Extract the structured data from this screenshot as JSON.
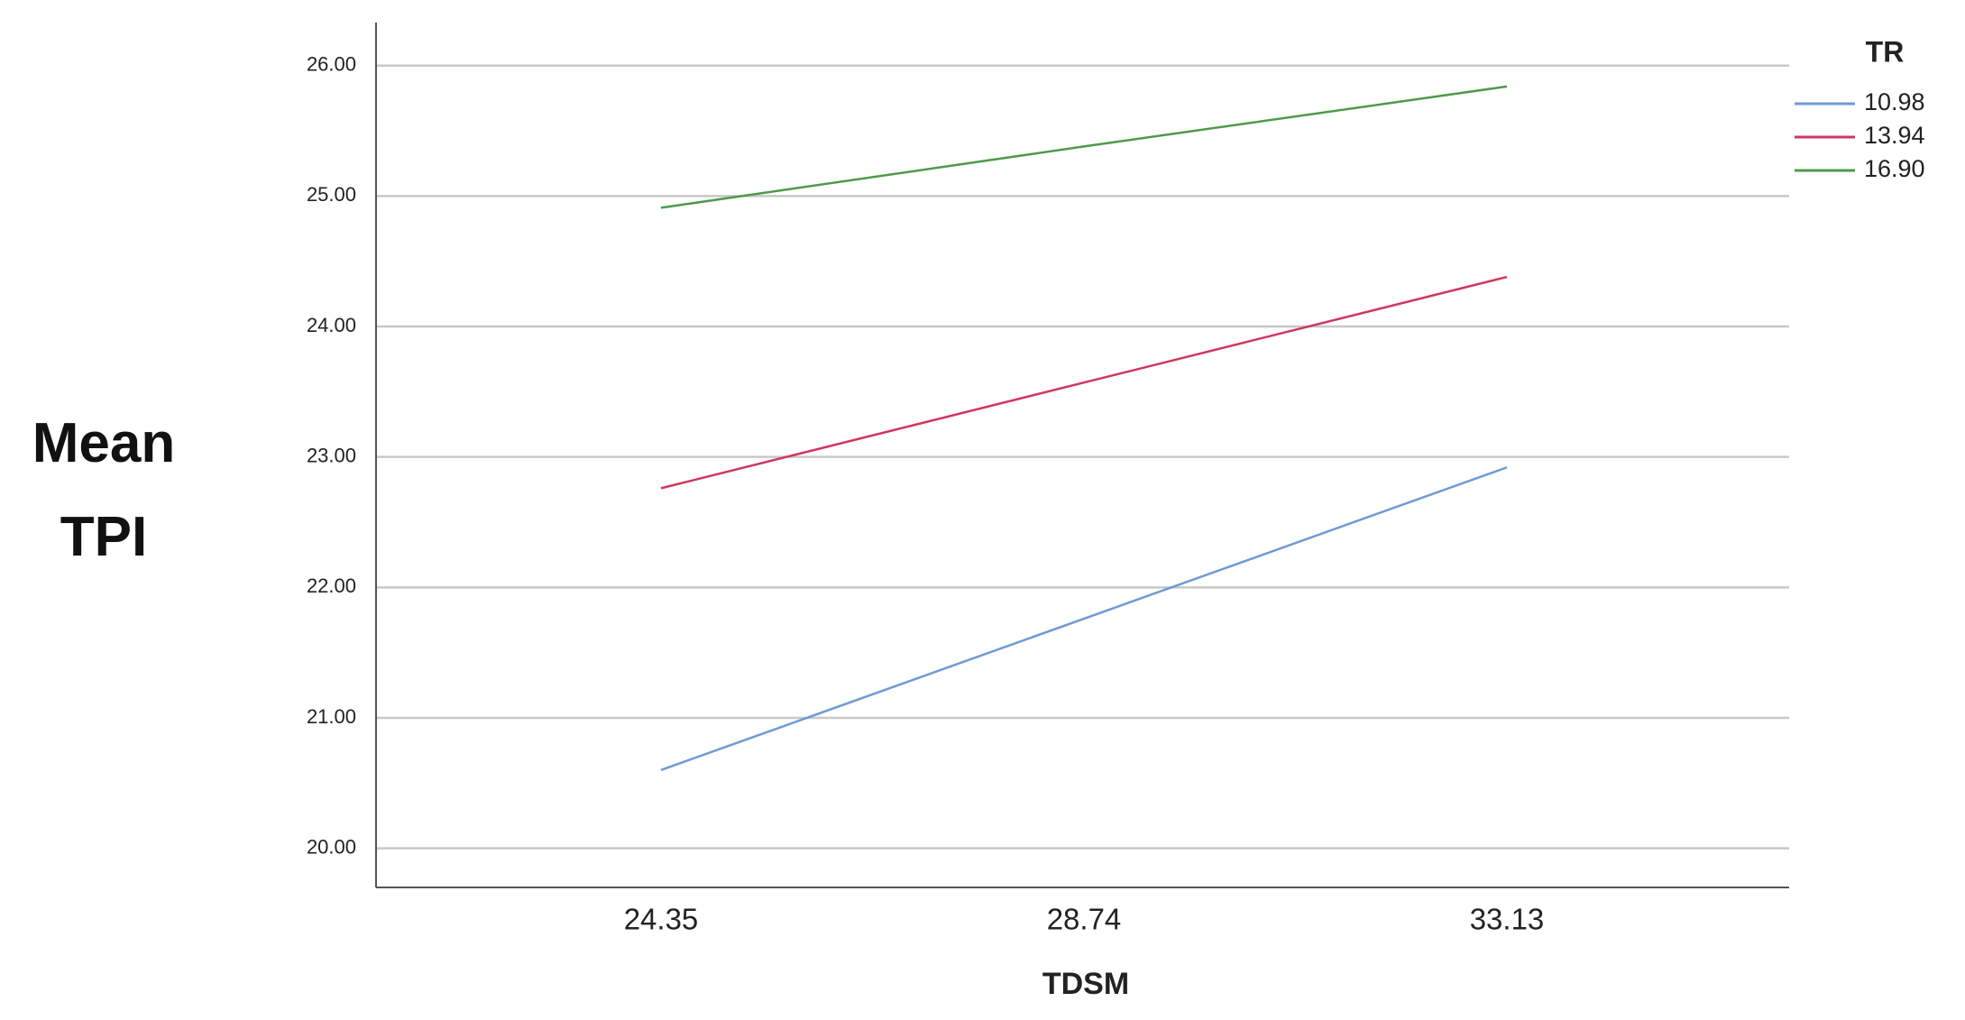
{
  "chart_data": {
    "type": "line",
    "x_label": "TDSM",
    "y_label": "Mean TPI",
    "legend_title": "TR",
    "categories": [
      "24.35",
      "28.74",
      "33.13"
    ],
    "series": [
      {
        "name": "10.98",
        "color": "#6f9ad3",
        "values": [
          20.6,
          21.76,
          22.92
        ]
      },
      {
        "name": "13.94",
        "color": "#d0375e",
        "values": [
          22.76,
          23.57,
          24.38
        ]
      },
      {
        "name": "16.90",
        "color": "#4e9a4b",
        "values": [
          24.91,
          25.38,
          25.84
        ]
      }
    ],
    "ylim": [
      19.7,
      26.33
    ],
    "yticks": [
      {
        "value": 20,
        "label": "20.00"
      },
      {
        "value": 21,
        "label": "21.00"
      },
      {
        "value": 22,
        "label": "22.00"
      },
      {
        "value": 23,
        "label": "23.00"
      },
      {
        "value": 24,
        "label": "24.00"
      },
      {
        "value": 25,
        "label": "25.00"
      },
      {
        "value": 26,
        "label": "26.00"
      }
    ],
    "grid": true
  }
}
